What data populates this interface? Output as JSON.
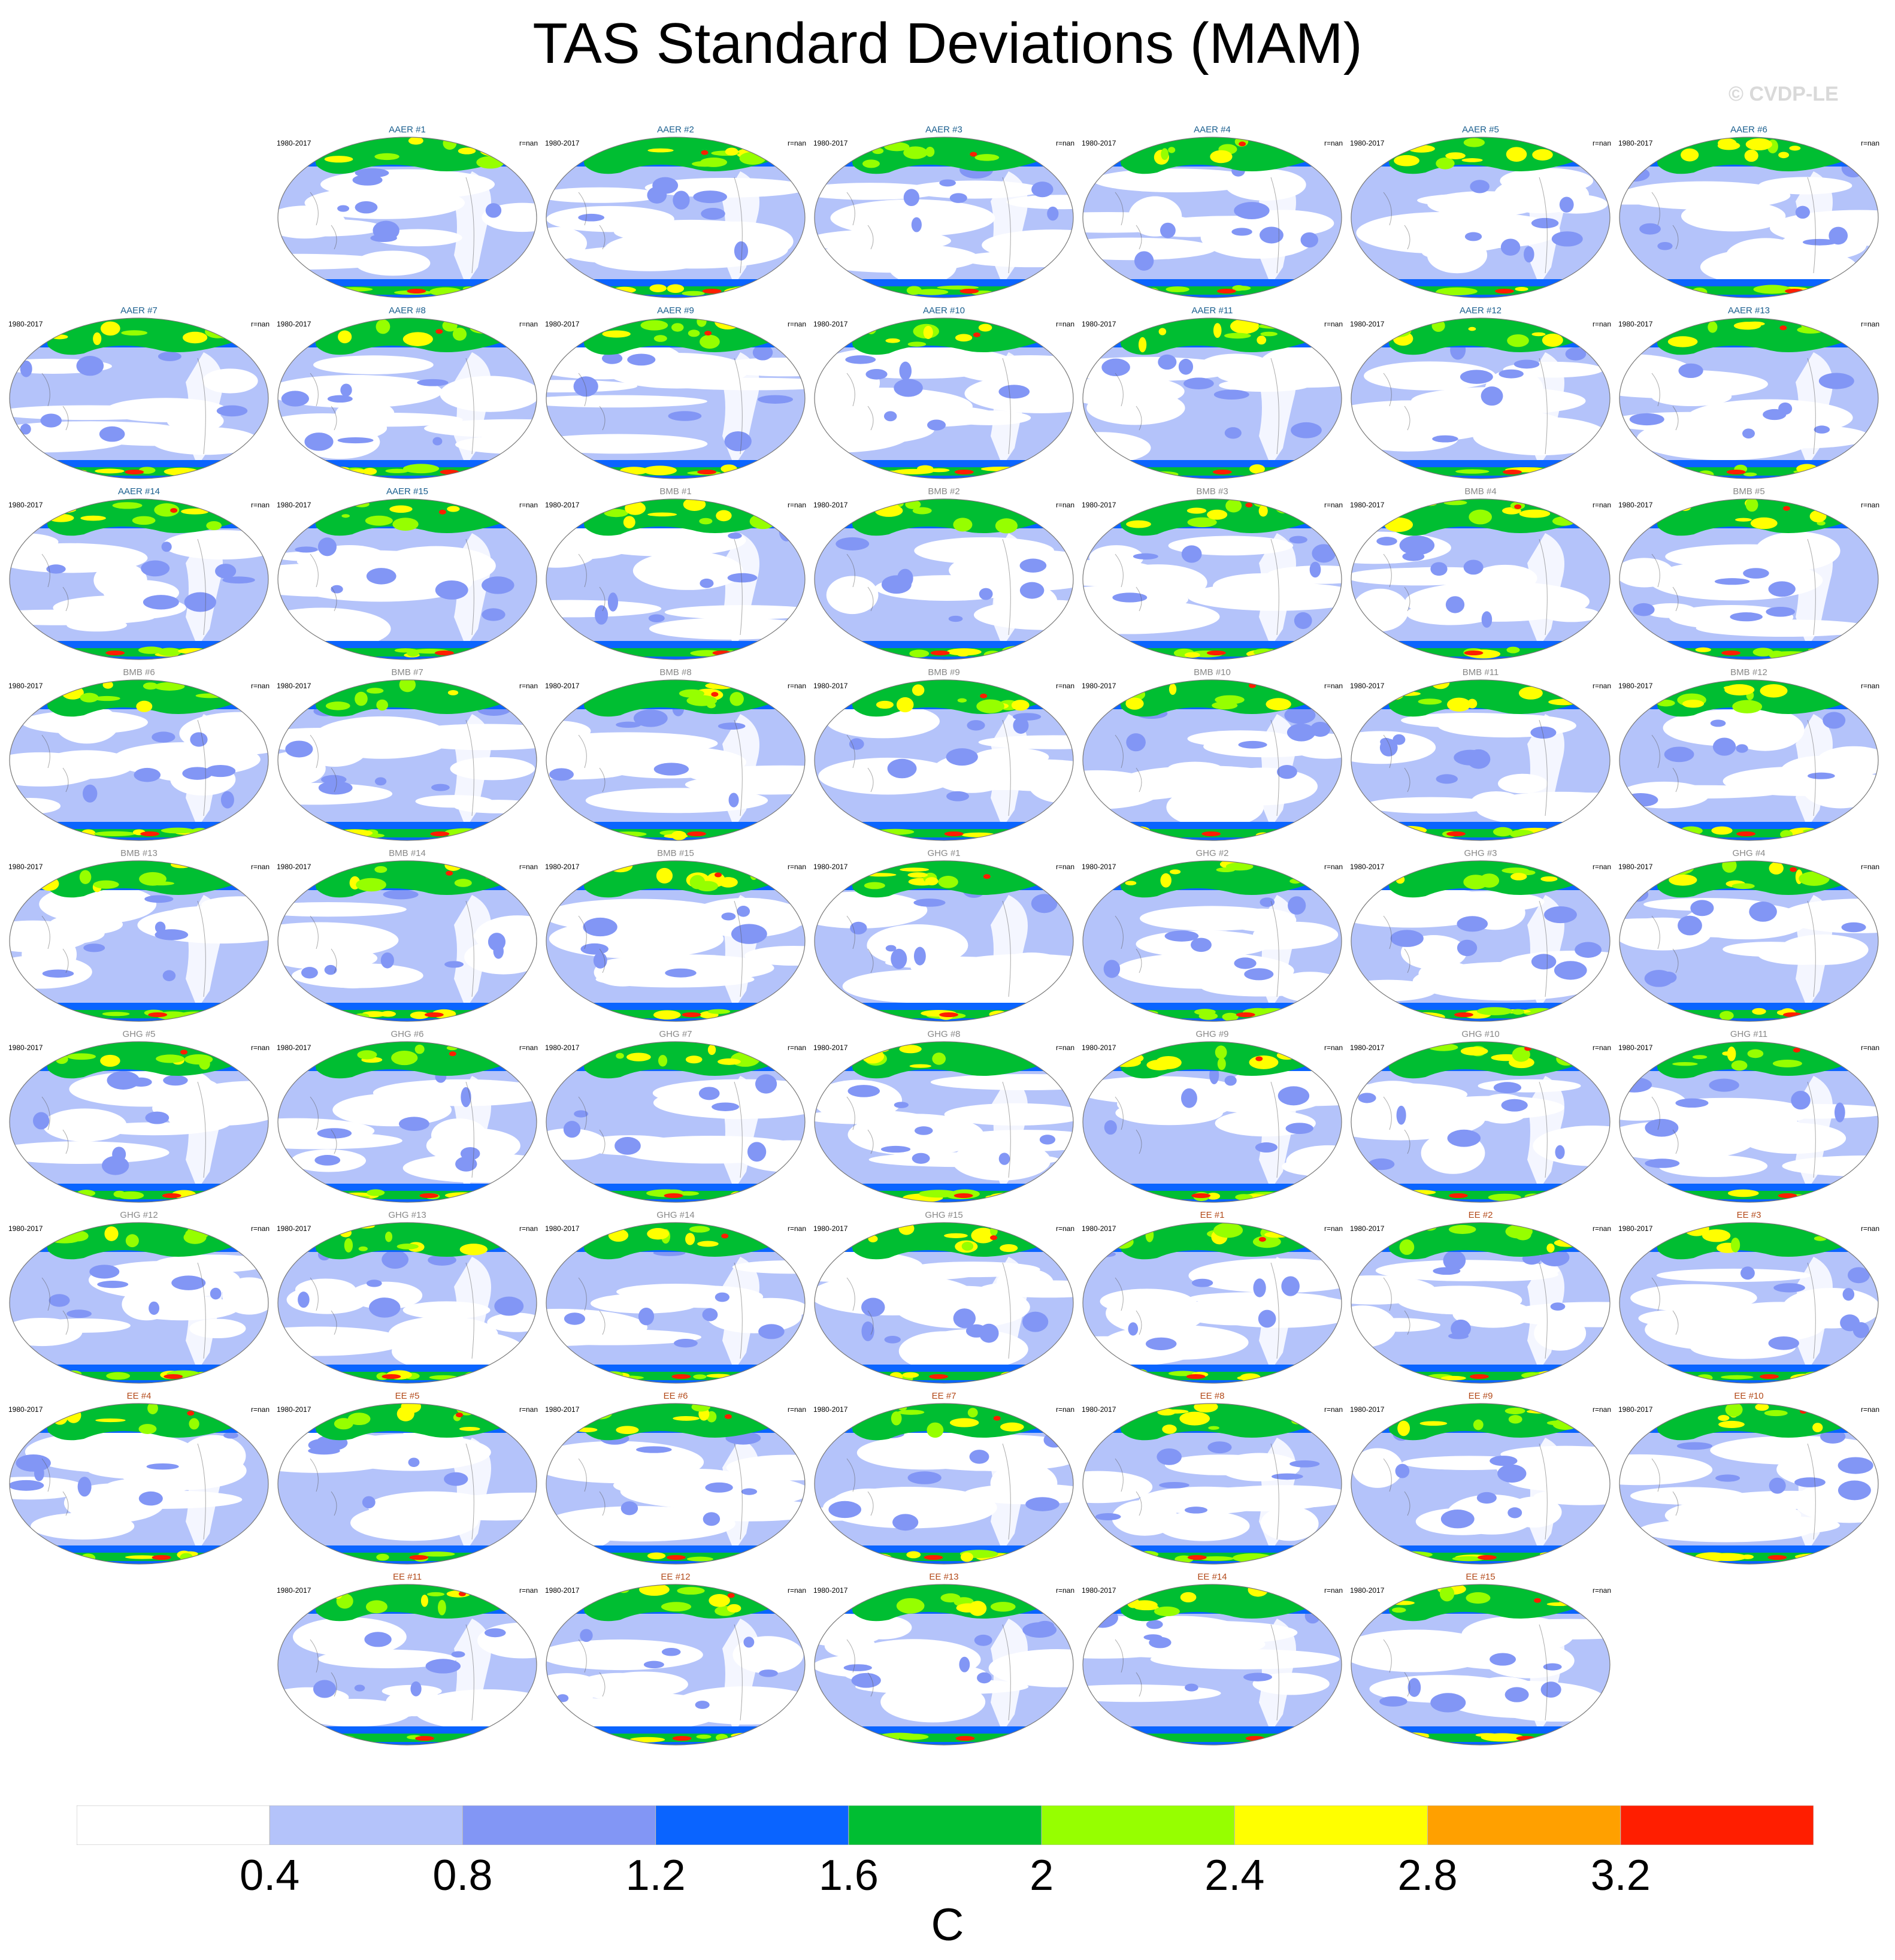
{
  "title": "TAS Standard Deviations (MAM)",
  "copyright": "© CVDP-LE",
  "period": "1980-2017",
  "rvalue": "r=nan",
  "groups": [
    {
      "name": "AAER",
      "color": "#1a5f8f"
    },
    {
      "name": "BMB",
      "color": "#888888"
    },
    {
      "name": "GHG",
      "color": "#888888"
    },
    {
      "name": "EE",
      "color": "#b34a1a"
    }
  ],
  "panels": [
    {
      "title": "AAER #1",
      "group": 0
    },
    {
      "title": "AAER #2",
      "group": 0
    },
    {
      "title": "AAER #3",
      "group": 0
    },
    {
      "title": "AAER #4",
      "group": 0
    },
    {
      "title": "AAER #5",
      "group": 0
    },
    {
      "title": "AAER #6",
      "group": 0
    },
    {
      "title": "AAER #7",
      "group": 0
    },
    {
      "title": "AAER #8",
      "group": 0
    },
    {
      "title": "AAER #9",
      "group": 0
    },
    {
      "title": "AAER #10",
      "group": 0
    },
    {
      "title": "AAER #11",
      "group": 0
    },
    {
      "title": "AAER #12",
      "group": 0
    },
    {
      "title": "AAER #13",
      "group": 0
    },
    {
      "title": "AAER #14",
      "group": 0
    },
    {
      "title": "AAER #15",
      "group": 0
    },
    {
      "title": "BMB #1",
      "group": 1
    },
    {
      "title": "BMB #2",
      "group": 1
    },
    {
      "title": "BMB #3",
      "group": 1
    },
    {
      "title": "BMB #4",
      "group": 1
    },
    {
      "title": "BMB #5",
      "group": 1
    },
    {
      "title": "BMB #6",
      "group": 1
    },
    {
      "title": "BMB #7",
      "group": 1
    },
    {
      "title": "BMB #8",
      "group": 1
    },
    {
      "title": "BMB #9",
      "group": 1
    },
    {
      "title": "BMB #10",
      "group": 1
    },
    {
      "title": "BMB #11",
      "group": 1
    },
    {
      "title": "BMB #12",
      "group": 1
    },
    {
      "title": "BMB #13",
      "group": 1
    },
    {
      "title": "BMB #14",
      "group": 1
    },
    {
      "title": "BMB #15",
      "group": 1
    },
    {
      "title": "GHG #1",
      "group": 2
    },
    {
      "title": "GHG #2",
      "group": 2
    },
    {
      "title": "GHG #3",
      "group": 2
    },
    {
      "title": "GHG #4",
      "group": 2
    },
    {
      "title": "GHG #5",
      "group": 2
    },
    {
      "title": "GHG #6",
      "group": 2
    },
    {
      "title": "GHG #7",
      "group": 2
    },
    {
      "title": "GHG #8",
      "group": 2
    },
    {
      "title": "GHG #9",
      "group": 2
    },
    {
      "title": "GHG #10",
      "group": 2
    },
    {
      "title": "GHG #11",
      "group": 2
    },
    {
      "title": "GHG #12",
      "group": 2
    },
    {
      "title": "GHG #13",
      "group": 2
    },
    {
      "title": "GHG #14",
      "group": 2
    },
    {
      "title": "GHG #15",
      "group": 2
    },
    {
      "title": "EE #1",
      "group": 3
    },
    {
      "title": "EE #2",
      "group": 3
    },
    {
      "title": "EE #3",
      "group": 3
    },
    {
      "title": "EE #4",
      "group": 3
    },
    {
      "title": "EE #5",
      "group": 3
    },
    {
      "title": "EE #6",
      "group": 3
    },
    {
      "title": "EE #7",
      "group": 3
    },
    {
      "title": "EE #8",
      "group": 3
    },
    {
      "title": "EE #9",
      "group": 3
    },
    {
      "title": "EE #10",
      "group": 3
    },
    {
      "title": "EE #11",
      "group": 3
    },
    {
      "title": "EE #12",
      "group": 3
    },
    {
      "title": "EE #13",
      "group": 3
    },
    {
      "title": "EE #14",
      "group": 3
    },
    {
      "title": "EE #15",
      "group": 3
    }
  ],
  "colorbar": {
    "colors": [
      "#ffffff",
      "#b4c3fa",
      "#8296f5",
      "#0a64ff",
      "#00be32",
      "#96ff00",
      "#ffff00",
      "#ffa000",
      "#ff1e00"
    ],
    "tick_labels": [
      "0.4",
      "0.8",
      "1.2",
      "1.6",
      "2",
      "2.4",
      "2.8",
      "3.2"
    ],
    "units": "C"
  }
}
